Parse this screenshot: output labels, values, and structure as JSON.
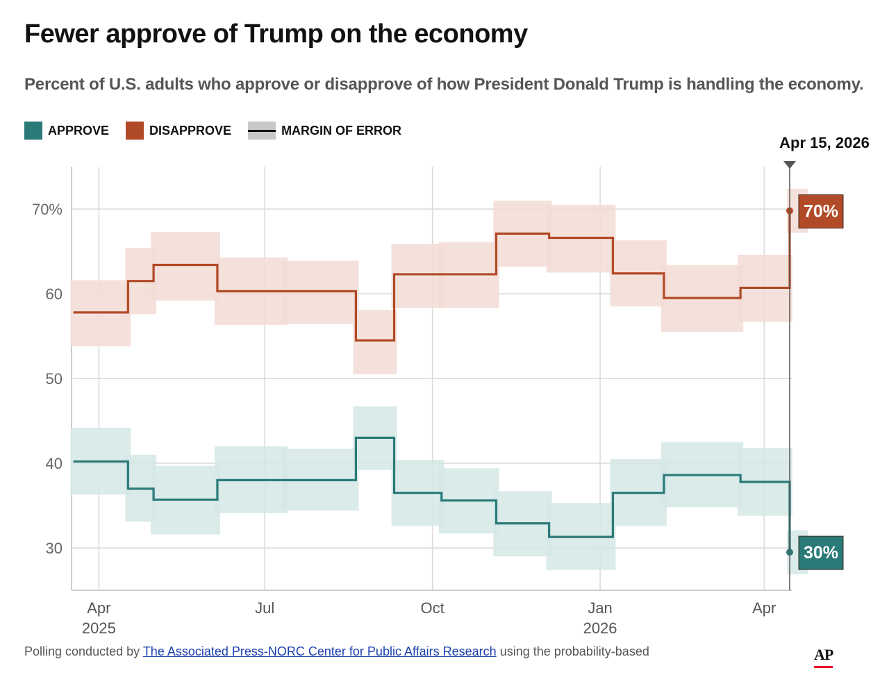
{
  "title": "Fewer approve of Trump on the economy",
  "subtitle": "Percent of U.S. adults who approve or disapprove of how President Donald Trump is handling the economy.",
  "legend": {
    "approve": "APPROVE",
    "disapprove": "DISAPPROVE",
    "moe": "MARGIN OF ERROR"
  },
  "colors": {
    "approve": "#2a7a78",
    "approve_band": "#d5e7e6",
    "disapprove": "#b14a27",
    "disapprove_band": "#f2dcd5",
    "grid": "#d9d9d9"
  },
  "footer": {
    "prefix": "Polling conducted by",
    "link": "The Associated Press-NORC Center for Public Affairs Research",
    "suffix": "using the probability-based"
  },
  "logo": "AP",
  "chart_data": {
    "type": "line",
    "step": true,
    "title": "Fewer approve of Trump on the economy",
    "xlabel": "",
    "ylabel": "",
    "ylim": [
      25,
      75
    ],
    "yticks": [
      30,
      40,
      50,
      60,
      70
    ],
    "ytick_labels": [
      "30",
      "40",
      "50",
      "60",
      "70%"
    ],
    "xlim": [
      "2025-03-17",
      "2026-04-24"
    ],
    "xticks": [
      {
        "date": "2025-04-01",
        "label": "Apr",
        "year": "2025"
      },
      {
        "date": "2025-07-01",
        "label": "Jul",
        "year": ""
      },
      {
        "date": "2025-10-01",
        "label": "Oct",
        "year": ""
      },
      {
        "date": "2026-01-01",
        "label": "Jan",
        "year": "2026"
      },
      {
        "date": "2026-04-01",
        "label": "Apr",
        "year": ""
      }
    ],
    "marker": {
      "date": "2026-04-15",
      "label": "Apr 15, 2026"
    },
    "series": [
      {
        "name": "Disapprove",
        "end_label": "70%",
        "points": [
          {
            "start": "2025-03-18",
            "end": "2025-04-17",
            "value": 57.8,
            "lo": 53.8,
            "hi": 61.6
          },
          {
            "start": "2025-04-17",
            "end": "2025-05-01",
            "value": 61.5,
            "lo": 57.6,
            "hi": 65.4
          },
          {
            "start": "2025-05-01",
            "end": "2025-06-05",
            "value": 63.4,
            "lo": 59.2,
            "hi": 67.3
          },
          {
            "start": "2025-06-05",
            "end": "2025-07-12",
            "value": 60.3,
            "lo": 56.3,
            "hi": 64.3
          },
          {
            "start": "2025-07-12",
            "end": "2025-08-20",
            "value": 60.3,
            "lo": 56.4,
            "hi": 63.9
          },
          {
            "start": "2025-08-20",
            "end": "2025-09-10",
            "value": 54.5,
            "lo": 50.5,
            "hi": 58.1
          },
          {
            "start": "2025-09-10",
            "end": "2025-10-06",
            "value": 62.3,
            "lo": 58.3,
            "hi": 65.9
          },
          {
            "start": "2025-10-06",
            "end": "2025-11-05",
            "value": 62.3,
            "lo": 58.3,
            "hi": 66.1
          },
          {
            "start": "2025-11-05",
            "end": "2025-12-04",
            "value": 67.1,
            "lo": 63.2,
            "hi": 71.0
          },
          {
            "start": "2025-12-04",
            "end": "2026-01-08",
            "value": 66.6,
            "lo": 62.5,
            "hi": 70.5
          },
          {
            "start": "2026-01-08",
            "end": "2026-02-05",
            "value": 62.4,
            "lo": 58.5,
            "hi": 66.3
          },
          {
            "start": "2026-02-05",
            "end": "2026-03-19",
            "value": 59.5,
            "lo": 55.5,
            "hi": 63.4
          },
          {
            "start": "2026-03-19",
            "end": "2026-04-15",
            "value": 60.7,
            "lo": 56.7,
            "hi": 64.6
          },
          {
            "start": "2026-04-15",
            "end": "2026-04-15",
            "value": 69.8,
            "lo": 67.2,
            "hi": 72.4
          }
        ]
      },
      {
        "name": "Approve",
        "end_label": "30%",
        "points": [
          {
            "start": "2025-03-18",
            "end": "2025-04-17",
            "value": 40.2,
            "lo": 36.3,
            "hi": 44.2
          },
          {
            "start": "2025-04-17",
            "end": "2025-05-01",
            "value": 37.0,
            "lo": 33.1,
            "hi": 41.0
          },
          {
            "start": "2025-05-01",
            "end": "2025-06-05",
            "value": 35.7,
            "lo": 31.6,
            "hi": 39.7
          },
          {
            "start": "2025-06-05",
            "end": "2025-07-12",
            "value": 38.0,
            "lo": 34.1,
            "hi": 42.0
          },
          {
            "start": "2025-07-12",
            "end": "2025-08-20",
            "value": 38.0,
            "lo": 34.4,
            "hi": 41.7
          },
          {
            "start": "2025-08-20",
            "end": "2025-09-10",
            "value": 43.0,
            "lo": 39.2,
            "hi": 46.7
          },
          {
            "start": "2025-09-10",
            "end": "2025-10-06",
            "value": 36.5,
            "lo": 32.6,
            "hi": 40.4
          },
          {
            "start": "2025-10-06",
            "end": "2025-11-05",
            "value": 35.6,
            "lo": 31.7,
            "hi": 39.4
          },
          {
            "start": "2025-11-05",
            "end": "2025-12-04",
            "value": 32.9,
            "lo": 29.0,
            "hi": 36.7
          },
          {
            "start": "2025-12-04",
            "end": "2026-01-08",
            "value": 31.3,
            "lo": 27.4,
            "hi": 35.3
          },
          {
            "start": "2026-01-08",
            "end": "2026-02-05",
            "value": 36.5,
            "lo": 32.6,
            "hi": 40.5
          },
          {
            "start": "2026-02-05",
            "end": "2026-03-19",
            "value": 38.6,
            "lo": 34.8,
            "hi": 42.5
          },
          {
            "start": "2026-03-19",
            "end": "2026-04-15",
            "value": 37.8,
            "lo": 33.8,
            "hi": 41.8
          },
          {
            "start": "2026-04-15",
            "end": "2026-04-15",
            "value": 29.5,
            "lo": 26.9,
            "hi": 32.1
          }
        ]
      }
    ]
  }
}
